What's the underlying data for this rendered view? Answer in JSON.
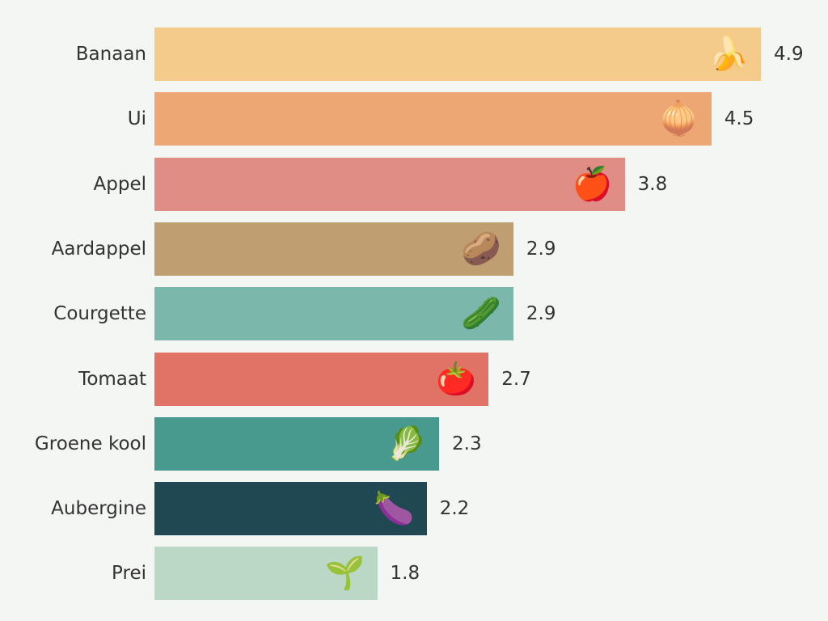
{
  "chart_data": {
    "type": "bar",
    "orientation": "horizontal",
    "categories": [
      "Banaan",
      "Ui",
      "Appel",
      "Aardappel",
      "Courgette",
      "Tomaat",
      "Groene kool",
      "Aubergine",
      "Prei"
    ],
    "values": [
      4.9,
      4.5,
      3.8,
      2.9,
      2.9,
      2.7,
      2.3,
      2.2,
      1.8
    ],
    "value_labels": [
      "4.9",
      "4.5",
      "3.8",
      "2.9",
      "2.9",
      "2.7",
      "2.3",
      "2.2",
      "1.8"
    ],
    "colors": [
      "#f4cb8a",
      "#eca775",
      "#e08d86",
      "#bf9f72",
      "#7bb7ab",
      "#e17266",
      "#489a8f",
      "#1f4853",
      "#bbd7c5"
    ],
    "icons": [
      "banana-icon",
      "onion-icon",
      "apple-icon",
      "potato-icon",
      "cucumber-icon",
      "tomato-icon",
      "leafy-green-icon",
      "eggplant-icon",
      "leek-icon"
    ],
    "icon_glyphs": [
      "🍌",
      "🧅",
      "🍎",
      "🥔",
      "🥒",
      "🍅",
      "🥬",
      "🍆",
      "🌱"
    ],
    "xlim": [
      0,
      4.9
    ],
    "title": "",
    "xlabel": "",
    "ylabel": "",
    "grid": false,
    "legend": "none"
  }
}
